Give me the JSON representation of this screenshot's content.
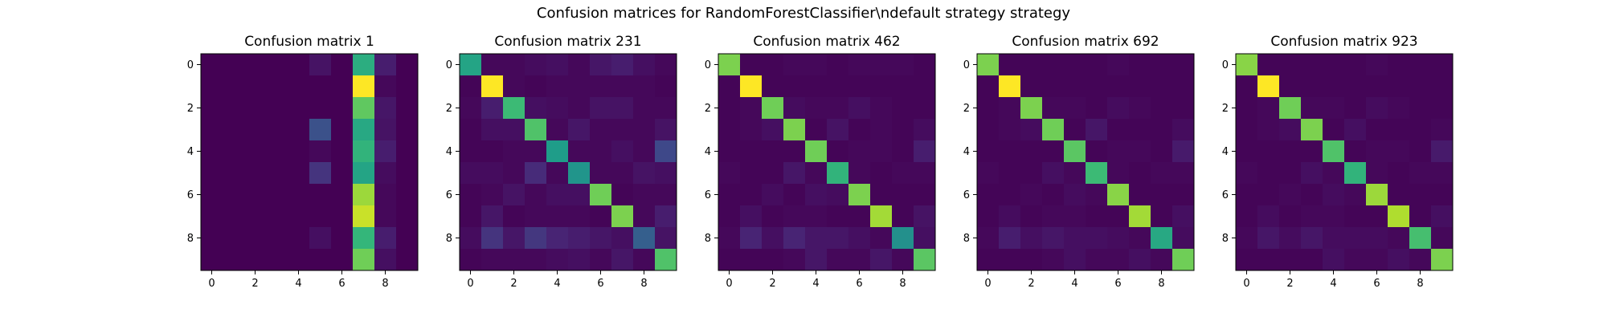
{
  "figure": {
    "suptitle": "Confusion matrices for RandomForestClassifier\\ndefault strategy strategy"
  },
  "colormap": {
    "name": "viridis",
    "stops": [
      "#440154",
      "#482878",
      "#3e4989",
      "#31688e",
      "#26828e",
      "#1f9e89",
      "#35b779",
      "#6ece58",
      "#b5de2b",
      "#fde725"
    ]
  },
  "chart_data": [
    {
      "type": "heatmap",
      "title": "Confusion matrix 1",
      "x_ticks": [
        "0",
        "2",
        "4",
        "6",
        "8"
      ],
      "y_ticks": [
        "0",
        "2",
        "4",
        "6",
        "8"
      ],
      "values": [
        [
          0.0,
          0.0,
          0.0,
          0.0,
          0.0,
          0.05,
          0.0,
          0.62,
          0.08,
          0.0
        ],
        [
          0.0,
          0.0,
          0.0,
          0.0,
          0.0,
          0.0,
          0.0,
          1.0,
          0.02,
          0.0
        ],
        [
          0.0,
          0.0,
          0.0,
          0.0,
          0.0,
          0.0,
          0.0,
          0.75,
          0.06,
          0.0
        ],
        [
          0.0,
          0.0,
          0.0,
          0.0,
          0.0,
          0.25,
          0.0,
          0.6,
          0.05,
          0.0
        ],
        [
          0.0,
          0.0,
          0.0,
          0.0,
          0.0,
          0.02,
          0.0,
          0.65,
          0.08,
          0.0
        ],
        [
          0.0,
          0.0,
          0.0,
          0.0,
          0.0,
          0.15,
          0.0,
          0.58,
          0.03,
          0.0
        ],
        [
          0.0,
          0.0,
          0.0,
          0.0,
          0.0,
          0.0,
          0.0,
          0.85,
          0.02,
          0.0
        ],
        [
          0.0,
          0.0,
          0.0,
          0.0,
          0.0,
          0.0,
          0.0,
          0.92,
          0.02,
          0.0
        ],
        [
          0.0,
          0.0,
          0.0,
          0.0,
          0.0,
          0.04,
          0.0,
          0.66,
          0.08,
          0.0
        ],
        [
          0.0,
          0.0,
          0.0,
          0.0,
          0.0,
          0.0,
          0.0,
          0.78,
          0.04,
          0.0
        ]
      ]
    },
    {
      "type": "heatmap",
      "title": "Confusion matrix 231",
      "x_ticks": [
        "0",
        "2",
        "4",
        "6",
        "8"
      ],
      "y_ticks": [
        "0",
        "2",
        "4",
        "6",
        "8"
      ],
      "values": [
        [
          0.58,
          0.02,
          0.02,
          0.03,
          0.04,
          0.02,
          0.06,
          0.08,
          0.04,
          0.02
        ],
        [
          0.01,
          1.0,
          0.02,
          0.01,
          0.02,
          0.02,
          0.02,
          0.02,
          0.02,
          0.01
        ],
        [
          0.02,
          0.08,
          0.68,
          0.04,
          0.03,
          0.02,
          0.05,
          0.05,
          0.02,
          0.02
        ],
        [
          0.01,
          0.04,
          0.04,
          0.72,
          0.02,
          0.06,
          0.02,
          0.02,
          0.02,
          0.05
        ],
        [
          0.01,
          0.01,
          0.02,
          0.02,
          0.55,
          0.02,
          0.02,
          0.04,
          0.02,
          0.22
        ],
        [
          0.03,
          0.03,
          0.02,
          0.12,
          0.02,
          0.52,
          0.02,
          0.02,
          0.05,
          0.04
        ],
        [
          0.01,
          0.02,
          0.05,
          0.02,
          0.04,
          0.04,
          0.78,
          0.01,
          0.02,
          0.02
        ],
        [
          0.01,
          0.06,
          0.01,
          0.02,
          0.02,
          0.02,
          0.01,
          0.8,
          0.02,
          0.08
        ],
        [
          0.03,
          0.15,
          0.06,
          0.16,
          0.1,
          0.08,
          0.06,
          0.04,
          0.3,
          0.05
        ],
        [
          0.01,
          0.02,
          0.02,
          0.02,
          0.03,
          0.04,
          0.02,
          0.06,
          0.02,
          0.72
        ]
      ]
    },
    {
      "type": "heatmap",
      "title": "Confusion matrix 462",
      "x_ticks": [
        "0",
        "2",
        "4",
        "6",
        "8"
      ],
      "y_ticks": [
        "0",
        "2",
        "4",
        "6",
        "8"
      ],
      "values": [
        [
          0.8,
          0.01,
          0.01,
          0.02,
          0.02,
          0.01,
          0.02,
          0.02,
          0.02,
          0.01
        ],
        [
          0.01,
          1.0,
          0.01,
          0.01,
          0.01,
          0.01,
          0.01,
          0.01,
          0.01,
          0.01
        ],
        [
          0.01,
          0.02,
          0.78,
          0.03,
          0.02,
          0.02,
          0.04,
          0.02,
          0.01,
          0.01
        ],
        [
          0.01,
          0.02,
          0.04,
          0.8,
          0.01,
          0.05,
          0.01,
          0.02,
          0.01,
          0.03
        ],
        [
          0.01,
          0.01,
          0.01,
          0.01,
          0.78,
          0.01,
          0.02,
          0.02,
          0.01,
          0.08
        ],
        [
          0.02,
          0.01,
          0.01,
          0.06,
          0.02,
          0.65,
          0.02,
          0.01,
          0.02,
          0.02
        ],
        [
          0.01,
          0.01,
          0.03,
          0.01,
          0.04,
          0.03,
          0.8,
          0.01,
          0.01,
          0.01
        ],
        [
          0.01,
          0.04,
          0.01,
          0.02,
          0.02,
          0.01,
          0.01,
          0.86,
          0.01,
          0.05
        ],
        [
          0.02,
          0.1,
          0.04,
          0.1,
          0.06,
          0.06,
          0.04,
          0.02,
          0.5,
          0.04
        ],
        [
          0.01,
          0.01,
          0.01,
          0.02,
          0.06,
          0.02,
          0.02,
          0.06,
          0.02,
          0.74
        ]
      ]
    },
    {
      "type": "heatmap",
      "title": "Confusion matrix 692",
      "x_ticks": [
        "0",
        "2",
        "4",
        "6",
        "8"
      ],
      "y_ticks": [
        "0",
        "2",
        "4",
        "6",
        "8"
      ],
      "values": [
        [
          0.8,
          0.01,
          0.01,
          0.01,
          0.01,
          0.01,
          0.02,
          0.01,
          0.01,
          0.01
        ],
        [
          0.01,
          1.0,
          0.01,
          0.01,
          0.01,
          0.01,
          0.01,
          0.01,
          0.01,
          0.01
        ],
        [
          0.01,
          0.02,
          0.8,
          0.02,
          0.02,
          0.01,
          0.03,
          0.02,
          0.01,
          0.01
        ],
        [
          0.01,
          0.02,
          0.03,
          0.78,
          0.01,
          0.06,
          0.01,
          0.01,
          0.01,
          0.03
        ],
        [
          0.01,
          0.01,
          0.01,
          0.01,
          0.74,
          0.01,
          0.02,
          0.02,
          0.01,
          0.07
        ],
        [
          0.02,
          0.01,
          0.01,
          0.04,
          0.02,
          0.68,
          0.02,
          0.01,
          0.02,
          0.02
        ],
        [
          0.01,
          0.01,
          0.02,
          0.01,
          0.03,
          0.02,
          0.82,
          0.01,
          0.01,
          0.01
        ],
        [
          0.01,
          0.03,
          0.01,
          0.02,
          0.02,
          0.01,
          0.01,
          0.86,
          0.01,
          0.04
        ],
        [
          0.02,
          0.08,
          0.04,
          0.06,
          0.04,
          0.04,
          0.03,
          0.02,
          0.6,
          0.03
        ],
        [
          0.01,
          0.01,
          0.01,
          0.02,
          0.04,
          0.02,
          0.02,
          0.04,
          0.02,
          0.78
        ]
      ]
    },
    {
      "type": "heatmap",
      "title": "Confusion matrix 923",
      "x_ticks": [
        "0",
        "2",
        "4",
        "6",
        "8"
      ],
      "y_ticks": [
        "0",
        "2",
        "4",
        "6",
        "8"
      ],
      "values": [
        [
          0.82,
          0.01,
          0.01,
          0.01,
          0.01,
          0.01,
          0.02,
          0.01,
          0.01,
          0.01
        ],
        [
          0.01,
          1.0,
          0.01,
          0.01,
          0.01,
          0.01,
          0.01,
          0.01,
          0.01,
          0.01
        ],
        [
          0.01,
          0.02,
          0.78,
          0.02,
          0.02,
          0.01,
          0.03,
          0.02,
          0.01,
          0.01
        ],
        [
          0.01,
          0.02,
          0.03,
          0.8,
          0.01,
          0.04,
          0.01,
          0.01,
          0.01,
          0.02
        ],
        [
          0.01,
          0.01,
          0.01,
          0.01,
          0.72,
          0.01,
          0.02,
          0.02,
          0.01,
          0.07
        ],
        [
          0.02,
          0.01,
          0.01,
          0.04,
          0.02,
          0.65,
          0.02,
          0.01,
          0.02,
          0.02
        ],
        [
          0.01,
          0.01,
          0.02,
          0.01,
          0.03,
          0.02,
          0.85,
          0.01,
          0.01,
          0.01
        ],
        [
          0.01,
          0.03,
          0.01,
          0.02,
          0.02,
          0.01,
          0.01,
          0.88,
          0.01,
          0.04
        ],
        [
          0.02,
          0.06,
          0.03,
          0.06,
          0.03,
          0.03,
          0.03,
          0.02,
          0.7,
          0.02
        ],
        [
          0.01,
          0.01,
          0.01,
          0.01,
          0.04,
          0.02,
          0.02,
          0.04,
          0.02,
          0.8
        ]
      ]
    }
  ]
}
